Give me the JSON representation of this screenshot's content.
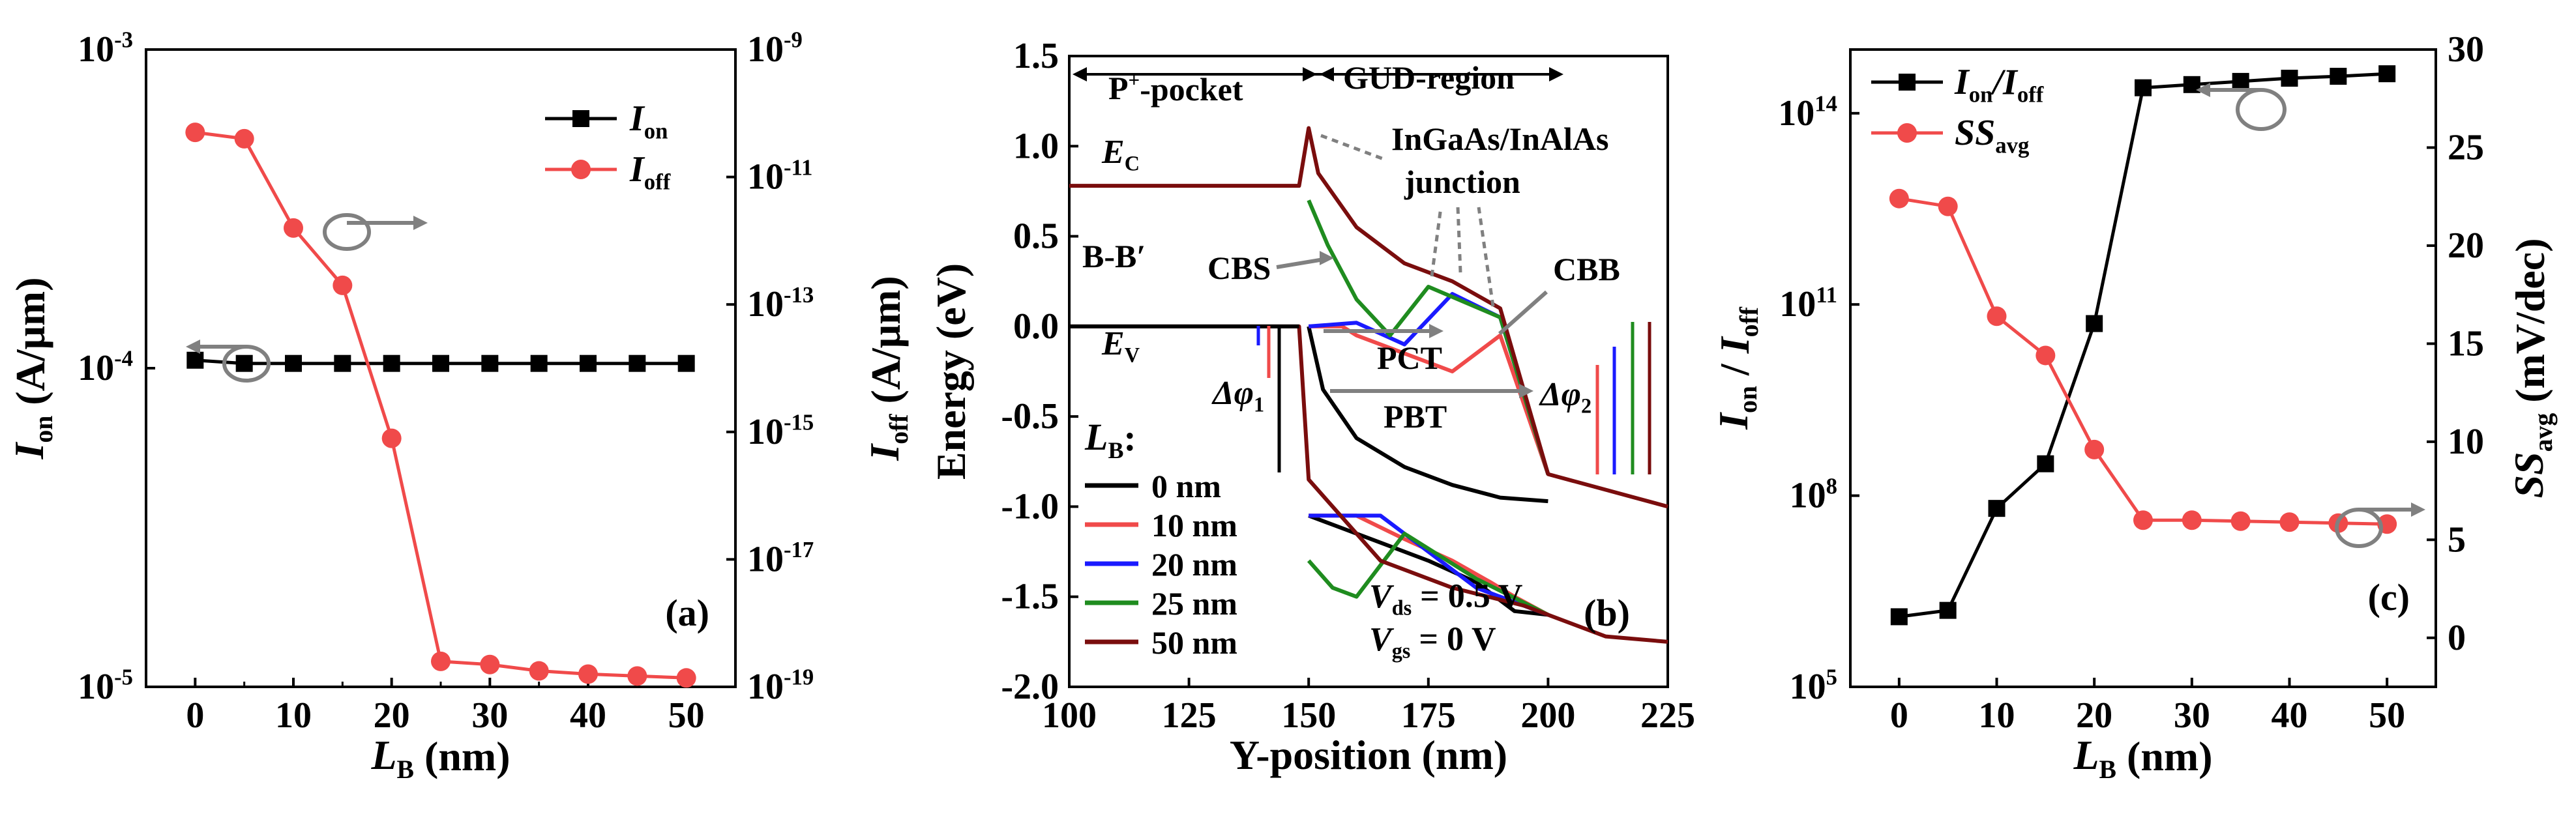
{
  "figure": {
    "colors": {
      "black": "#000000",
      "red": "#f04a4a",
      "blue": "#1a1aff",
      "green": "#1f8c1f",
      "maroon": "#7a0d0d",
      "gray": "#808080"
    }
  },
  "chart_data": [
    {
      "id": "a",
      "type": "line",
      "panel_label": "(a)",
      "xlabel": "L",
      "xlabel_sub": "B",
      "xlabel_unit": " (nm)",
      "ylabel_left": "I",
      "ylabel_left_sub": "on",
      "ylabel_left_unit": " (A/μm)",
      "ylabel_right": "I",
      "ylabel_right_sub": "off",
      "ylabel_right_unit": " (A/μm)",
      "x_ticks": [
        "0",
        "10",
        "20",
        "30",
        "40",
        "50"
      ],
      "xlim": [
        -5,
        55
      ],
      "ylim_left_log": [
        -5,
        -3
      ],
      "ylim_right_log": [
        -19,
        -9
      ],
      "left_ticks_exp": [
        "-3",
        "-4",
        "-5"
      ],
      "right_ticks_exp": [
        "-9",
        "-11",
        "-13",
        "-15",
        "-17",
        "-19"
      ],
      "series": [
        {
          "name": "I",
          "sub": "on",
          "axis": "left",
          "color": "#000000",
          "marker": "square",
          "x": [
            0,
            5,
            10,
            15,
            20,
            25,
            30,
            35,
            40,
            45,
            50
          ],
          "log_y": [
            -3.975,
            -3.985,
            -3.985,
            -3.985,
            -3.985,
            -3.985,
            -3.985,
            -3.985,
            -3.985,
            -3.985,
            -3.985
          ]
        },
        {
          "name": "I",
          "sub": "off",
          "axis": "right",
          "color": "#f04a4a",
          "marker": "circle",
          "x": [
            0,
            5,
            10,
            15,
            20,
            25,
            30,
            35,
            40,
            45,
            50
          ],
          "log_y": [
            -10.3,
            -10.4,
            -11.8,
            -12.7,
            -15.1,
            -18.6,
            -18.65,
            -18.75,
            -18.8,
            -18.83,
            -18.86
          ]
        }
      ]
    },
    {
      "id": "b",
      "type": "line",
      "panel_label": "(b)",
      "xlabel": "Y-position (nm)",
      "ylabel": "Energy (eV)",
      "xlim": [
        100,
        225
      ],
      "ylim": [
        -2.0,
        1.5
      ],
      "x_ticks": [
        "100",
        "125",
        "150",
        "175",
        "200",
        "225"
      ],
      "y_ticks": [
        "1.5",
        "1.0",
        "0.5",
        "0.0",
        "-0.5",
        "-1.0",
        "-1.5",
        "-2.0"
      ],
      "legend_title": "L",
      "legend_title_sub": "B",
      "legend_title_suffix": ":",
      "legend_entries": [
        "0 nm",
        "10 nm",
        "20 nm",
        "25 nm",
        "50 nm"
      ],
      "conditions": {
        "vds_sym": "V",
        "vds_sub": "ds",
        "vds_val": " = 0.5 V",
        "vgs_sym": "V",
        "vgs_sub": "gs",
        "vgs_val": " = 0 V"
      },
      "annotations": {
        "p_pocket": "P",
        "p_pocket_sup": "+",
        "p_pocket_rest": "-pocket",
        "gud": "GUD-region",
        "ec": "E",
        "ec_sub": "C",
        "ev": "E",
        "ev_sub": "V",
        "bb": "B-B′",
        "cbs": "CBS",
        "cbb": "CBB",
        "pct": "PCT",
        "pbt": "PBT",
        "dphi1": "Δφ",
        "dphi1_sub": "1",
        "dphi2": "Δφ",
        "dphi2_sub": "2",
        "junction1": "InGaAs/InAlAs",
        "junction2": "junction"
      },
      "series": [
        {
          "name": "0 nm",
          "color": "#000000",
          "ec": [
            [
              150,
              0.0
            ],
            [
              153,
              -0.35
            ],
            [
              160,
              -0.62
            ],
            [
              170,
              -0.78
            ],
            [
              180,
              -0.88
            ],
            [
              190,
              -0.95
            ],
            [
              200,
              -0.97
            ]
          ],
          "ev": [
            [
              150,
              -1.05
            ],
            [
              155,
              -1.1
            ],
            [
              165,
              -1.2
            ],
            [
              175,
              -1.3
            ],
            [
              185,
              -1.42
            ],
            [
              193,
              -1.58
            ],
            [
              200,
              -1.6
            ]
          ]
        },
        {
          "name": "10 nm",
          "color": "#f04a4a",
          "ec": [
            [
              150,
              0.0
            ],
            [
              157,
              0.0
            ],
            [
              160,
              -0.05
            ],
            [
              170,
              -0.15
            ],
            [
              180,
              -0.25
            ],
            [
              190,
              -0.05
            ],
            [
              200,
              -0.82
            ]
          ],
          "ev": [
            [
              150,
              -1.05
            ],
            [
              160,
              -1.05
            ],
            [
              170,
              -1.18
            ],
            [
              180,
              -1.3
            ],
            [
              188,
              -1.42
            ],
            [
              193,
              -1.5
            ],
            [
              200,
              -1.6
            ]
          ]
        },
        {
          "name": "20 nm",
          "color": "#1a1aff",
          "ec": [
            [
              150,
              0.0
            ],
            [
              160,
              0.02
            ],
            [
              170,
              -0.1
            ],
            [
              180,
              0.18
            ],
            [
              190,
              0.05
            ],
            [
              200,
              -0.82
            ]
          ],
          "ev": [
            [
              150,
              -1.05
            ],
            [
              165,
              -1.05
            ],
            [
              175,
              -1.25
            ],
            [
              185,
              -1.45
            ],
            [
              200,
              -1.6
            ]
          ]
        },
        {
          "name": "25 nm",
          "color": "#1f8c1f",
          "ec": [
            [
              150,
              0.7
            ],
            [
              154,
              0.45
            ],
            [
              160,
              0.15
            ],
            [
              167,
              -0.05
            ],
            [
              175,
              0.22
            ],
            [
              190,
              0.05
            ],
            [
              200,
              -0.82
            ]
          ],
          "ev": [
            [
              150,
              -1.3
            ],
            [
              155,
              -1.45
            ],
            [
              160,
              -1.5
            ],
            [
              170,
              -1.15
            ],
            [
              185,
              -1.4
            ],
            [
              200,
              -1.6
            ]
          ]
        },
        {
          "name": "50 nm",
          "color": "#7a0d0d",
          "ec": [
            [
              100,
              0.78
            ],
            [
              148,
              0.78
            ],
            [
              150,
              1.1
            ],
            [
              152,
              0.85
            ],
            [
              160,
              0.55
            ],
            [
              170,
              0.35
            ],
            [
              180,
              0.25
            ],
            [
              190,
              0.1
            ],
            [
              200,
              -0.82
            ],
            [
              225,
              -1.0
            ]
          ],
          "ev": [
            [
              100,
              0.0
            ],
            [
              148,
              0.0
            ],
            [
              150,
              -0.85
            ],
            [
              155,
              -1.0
            ],
            [
              165,
              -1.3
            ],
            [
              180,
              -1.45
            ],
            [
              195,
              -1.55
            ],
            [
              200,
              -1.6
            ],
            [
              212,
              -1.72
            ],
            [
              225,
              -1.75
            ]
          ]
        }
      ]
    },
    {
      "id": "c",
      "type": "line",
      "panel_label": "(c)",
      "xlabel": "L",
      "xlabel_sub": "B",
      "xlabel_unit": " (nm)",
      "ylabel_left_a": "I",
      "ylabel_left_a_sub": "on",
      "ylabel_left_mid": " / ",
      "ylabel_left_b": "I",
      "ylabel_left_b_sub": "off",
      "ylabel_right": "SS",
      "ylabel_right_sub": "avg",
      "ylabel_right_unit": " (mV/dec)",
      "x_ticks": [
        "0",
        "10",
        "20",
        "30",
        "40",
        "50"
      ],
      "xlim": [
        -5,
        55
      ],
      "ylim_left_log": [
        5,
        15
      ],
      "left_ticks_exp": [
        "14",
        "11",
        "8",
        "5"
      ],
      "ylim_right": [
        -2.5,
        30
      ],
      "right_ticks": [
        "0",
        "5",
        "10",
        "15",
        "20",
        "25",
        "30"
      ],
      "series": [
        {
          "name": "I",
          "sub": "on",
          "name2": "/I",
          "sub2": "off",
          "axis": "left",
          "color": "#000000",
          "marker": "square",
          "x": [
            0,
            5,
            10,
            15,
            20,
            25,
            30,
            35,
            40,
            45,
            50
          ],
          "log_y": [
            6.1,
            6.2,
            7.8,
            8.5,
            10.7,
            14.4,
            14.45,
            14.5,
            14.55,
            14.58,
            14.62
          ]
        },
        {
          "name": "SS",
          "sub": "avg",
          "axis": "right",
          "color": "#f04a4a",
          "marker": "circle",
          "x": [
            0,
            5,
            10,
            15,
            20,
            25,
            30,
            35,
            40,
            45,
            50
          ],
          "y": [
            22.4,
            22.0,
            16.4,
            14.4,
            9.6,
            6.0,
            6.0,
            5.95,
            5.9,
            5.85,
            5.8
          ]
        }
      ]
    }
  ]
}
